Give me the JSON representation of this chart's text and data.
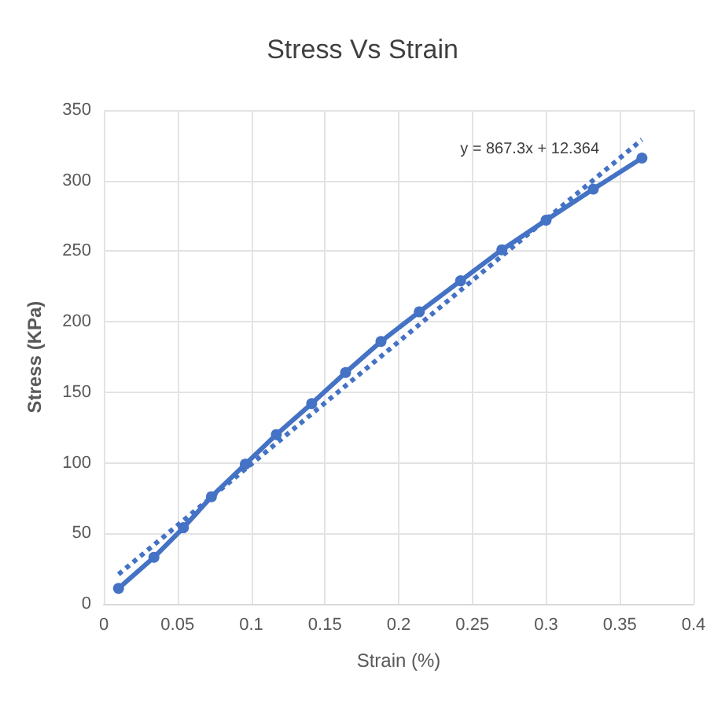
{
  "chart_data": {
    "type": "line",
    "title": "Stress Vs Strain",
    "xlabel": "Strain (%)",
    "ylabel": "Stress (KPa)",
    "xlim": [
      0,
      0.4
    ],
    "xticks": [
      0,
      0.05,
      0.1,
      0.15,
      0.2,
      0.25,
      0.3,
      0.35,
      0.4
    ],
    "ylim": [
      0,
      350
    ],
    "yticks": [
      0,
      50,
      100,
      150,
      200,
      250,
      300,
      350
    ],
    "grid": true,
    "annotations": [
      "y = 867.3x + 12.364"
    ],
    "series": [
      {
        "color": "#4472c4",
        "marker": "circle",
        "line_style": "solid",
        "x": [
          0.01,
          0.034,
          0.054,
          0.073,
          0.096,
          0.117,
          0.141,
          0.164,
          0.188,
          0.214,
          0.242,
          0.27,
          0.3,
          0.332,
          0.365
        ],
        "values": [
          11,
          33,
          54,
          76,
          99,
          120,
          142,
          164,
          186,
          207,
          229,
          251,
          272,
          294,
          316
        ]
      },
      {
        "type": "line",
        "color": "#4472c4",
        "marker": "none",
        "line_style": "dotted",
        "x": [
          0.01,
          0.365
        ],
        "values": [
          21,
          329
        ]
      }
    ]
  }
}
